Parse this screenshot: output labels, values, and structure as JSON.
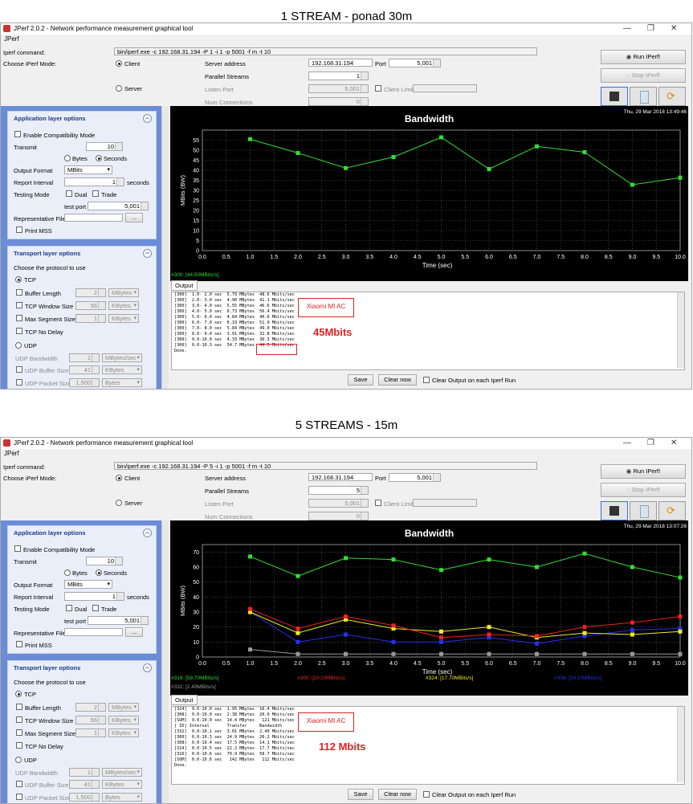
{
  "captions": {
    "top": "1 STREAM - ponad 30m",
    "bottom": "5 STREAMS - 15m"
  },
  "windows": [
    {
      "window_title": "JPerf 2.0.2 - Network performance measurement graphical tool",
      "menu": "JPerf",
      "iperf_command_label": "Iperf command:",
      "iperf_command": "bin/iperf.exe -c 192.168.31.194 -P 1 -i 1 -p 5001 -f m -t 10",
      "mode_label": "Choose iPerf Mode:",
      "client_label": "Client",
      "server_label": "Server",
      "server_address_label": "Server address",
      "server_address": "192.168.31.194",
      "port_label": "Port",
      "port": "5,001",
      "parallel_streams_label": "Parallel Streams",
      "parallel_streams": "1",
      "listen_port_label": "Listen Port",
      "listen_port": "5,001",
      "client_limit_label": "Client Limit",
      "num_connections_label": "Num Connections",
      "num_connections": "0",
      "run_label": "Run IPerf!",
      "stop_label": "Stop IPerf!",
      "app_section": "Application layer options",
      "compat_label": "Enable Compatibility Mode",
      "transmit_label": "Transmit",
      "transmit_value": "10",
      "bytes_label": "Bytes",
      "seconds_label": "Seconds",
      "output_format_label": "Output Format",
      "output_format": "MBits",
      "report_interval_label": "Report Interval",
      "report_interval": "1",
      "seconds_unit": "seconds",
      "testing_mode_label": "Testing Mode",
      "dual_label": "Dual",
      "trade_label": "Trade",
      "test_port_label": "test port",
      "test_port": "5,001",
      "rep_file_label": "Representative File",
      "browse_label": "...",
      "print_mss_label": "Print MSS",
      "transport_section": "Transport layer options",
      "protocol_label": "Choose the protocol to use",
      "tcp_label": "TCP",
      "buffer_len_label": "Buffer Length",
      "buffer_len": "2",
      "buffer_unit": "MBytes",
      "window_size_label": "TCP Window Size",
      "window_size": "56",
      "window_unit": "KBytes",
      "mss_label": "Max Segment Size",
      "mss": "1",
      "mss_unit": "KBytes",
      "nodelay_label": "TCP No Delay",
      "udp_label": "UDP",
      "udp_bw_label": "UDP Bandwidth",
      "udp_bw": "1",
      "udp_bw_unit": "MBytes/sec",
      "udp_buf_label": "UDP Buffer Size",
      "udp_buf": "41",
      "udp_buf_unit": "KBytes",
      "udp_packet_label": "UDP Packet Size",
      "udp_packet": "1,500",
      "udp_packet_unit": "Bytes",
      "chart_timestamp": "Thu, 29 Mar 2018 13:49:46",
      "legend": [
        {
          "label": "#300: [44.50MBits/s]",
          "color": "#33dd33"
        }
      ],
      "output_tab": "Output",
      "output_lines": [
        "[300]  1.0- 2.0 sec  5.79 MBytes  48.6 Mbits/sec",
        "[300]  2.0- 3.0 sec  4.90 MBytes  41.1 Mbits/sec",
        "[300]  3.0- 4.0 sec  5.55 MBytes  46.6 Mbits/sec",
        "[300]  4.0- 5.0 sec  6.73 MBytes  56.4 Mbits/sec",
        "[300]  5.0- 6.0 sec  4.84 MBytes  40.6 Mbits/sec",
        "[300]  6.0- 7.0 sec  6.19 MBytes  51.9 Mbits/sec",
        "[300]  7.0- 8.0 sec  5.84 MBytes  49.0 Mbits/sec",
        "[300]  8.0- 9.0 sec  3.91 MBytes  32.8 Mbits/sec",
        "[300]  9.0-10.0 sec  4.33 MBytes  36.3 Mbits/sec",
        "[300]  0.0-10.3 sec  54.7 MBytes  44.5 Mbits/sec",
        "Done."
      ],
      "annot_router": "Xiaomi MI AC",
      "annot_speed": "45Mbits",
      "save_label": "Save",
      "clear_label": "Clear now",
      "clear_each_label": "Clear Output on each Iperf Run"
    },
    {
      "window_title": "JPerf 2.0.2 - Network performance measurement graphical tool",
      "menu": "JPerf",
      "iperf_command_label": "Iperf command:",
      "iperf_command": "bin/iperf.exe -c 192.168.31.194 -P 5 -i 1 -p 5001 -f m -t 10",
      "mode_label": "Choose iPerf Mode:",
      "client_label": "Client",
      "server_label": "Server",
      "server_address_label": "Server address",
      "server_address": "192.168.31.194",
      "port_label": "Port",
      "port": "5,001",
      "parallel_streams_label": "Parallel Streams",
      "parallel_streams": "5",
      "listen_port_label": "Listen Port",
      "listen_port": "5,001",
      "client_limit_label": "Client Limit",
      "num_connections_label": "Num Connections",
      "num_connections": "0",
      "run_label": "Run IPerf!",
      "stop_label": "Stop IPerf!",
      "app_section": "Application layer options",
      "compat_label": "Enable Compatibility Mode",
      "transmit_label": "Transmit",
      "transmit_value": "10",
      "bytes_label": "Bytes",
      "seconds_label": "Seconds",
      "output_format_label": "Output Format",
      "output_format": "MBits",
      "report_interval_label": "Report Interval",
      "report_interval": "1",
      "seconds_unit": "seconds",
      "testing_mode_label": "Testing Mode",
      "dual_label": "Dual",
      "trade_label": "Trade",
      "test_port_label": "test port",
      "test_port": "5,001",
      "rep_file_label": "Representative File",
      "browse_label": "...",
      "print_mss_label": "Print MSS",
      "transport_section": "Transport layer options",
      "protocol_label": "Choose the protocol to use",
      "tcp_label": "TCP",
      "buffer_len_label": "Buffer Length",
      "buffer_len": "2",
      "buffer_unit": "MBytes",
      "window_size_label": "TCP Window Size",
      "window_size": "56",
      "window_unit": "KBytes",
      "mss_label": "Max Segment Size",
      "mss": "1",
      "mss_unit": "KBytes",
      "nodelay_label": "TCP No Delay",
      "udp_label": "UDP",
      "udp_bw_label": "UDP Bandwidth",
      "udp_bw": "1",
      "udp_bw_unit": "MBytes/sec",
      "udp_buf_label": "UDP Buffer Size",
      "udp_buf": "41",
      "udp_buf_unit": "KBytes",
      "udp_packet_label": "UDP Packet Size",
      "udp_packet": "1,500",
      "udp_packet_unit": "Bytes",
      "chart_timestamp": "Thu, 29 Mar 2018 13:07:26",
      "legend": [
        {
          "label": "#316: [58.70MBits/s]",
          "color": "#33dd33"
        },
        {
          "label": "#300: [20.20MBits/s]",
          "color": "#ee2222"
        },
        {
          "label": "#324: [17.70MBits/s]",
          "color": "#eeee22"
        },
        {
          "label": "#308: [14.10MBits/s]",
          "color": "#2233ee"
        },
        {
          "label": "#332: [2.49MBits/s]",
          "color": "#999999"
        }
      ],
      "output_tab": "Output",
      "output_lines": [
        "[324]  9.0-10.0 sec  1.95 MBytes  16.4 Mbits/sec",
        "[308]  9.0-10.0 sec  2.38 MBytes  20.0 Mbits/sec",
        "[SUM]  9.0-10.0 sec  14.4 MBytes   121 Mbits/sec",
        "[ ID] Interval       Transfer     Bandwidth",
        "[332]  0.0-10.1 sec  3.01 MBytes  2.49 Mbits/sec",
        "[300]  0.0-10.3 sec  24.9 MBytes  20.2 Mbits/sec",
        "[308]  0.0-10.4 sec  17.5 MBytes  14.1 Mbits/sec",
        "[324]  0.0-10.5 sec  22.2 MBytes  17.7 Mbits/sec",
        "[316]  0.0-10.6 sec  70.9 MBytes  58.7 Mbits/sec",
        "[SUM]  0.0-10.6 sec   142 MBytes   112 Mbits/sec",
        "Done."
      ],
      "annot_router": "Xiaomi MI AC",
      "annot_speed": "112 Mbits",
      "save_label": "Save",
      "clear_label": "Clear now",
      "clear_each_label": "Clear Output on each Iperf Run"
    }
  ],
  "chart_data": [
    {
      "type": "line",
      "title": "Bandwidth",
      "xlabel": "Time (sec)",
      "ylabel": "MBits (BW)",
      "xlim": [
        0,
        10
      ],
      "ylim": [
        0,
        60
      ],
      "xticks": [
        "0.0",
        "0.5",
        "1.0",
        "1.5",
        "2.0",
        "2.5",
        "3.0",
        "3.5",
        "4.0",
        "4.5",
        "5.0",
        "5.5",
        "6.0",
        "6.5",
        "7.0",
        "7.5",
        "8.0",
        "8.5",
        "9.0",
        "9.5",
        "10.0"
      ],
      "yticks": [
        0,
        5,
        10,
        15,
        20,
        25,
        30,
        35,
        40,
        45,
        50,
        55
      ],
      "x": [
        1,
        2,
        3,
        4,
        5,
        6,
        7,
        8,
        9,
        10
      ],
      "series": [
        {
          "name": "#300",
          "color": "#33dd33",
          "values": [
            55.5,
            48.6,
            41.1,
            46.6,
            56.4,
            40.6,
            51.9,
            49.0,
            32.8,
            36.3
          ]
        }
      ]
    },
    {
      "type": "line",
      "title": "Bandwidth",
      "xlabel": "Time (sec)",
      "ylabel": "MBits (BW)",
      "xlim": [
        0,
        10
      ],
      "ylim": [
        0,
        75
      ],
      "xticks": [
        "0.0",
        "0.5",
        "1.0",
        "1.5",
        "2.0",
        "2.5",
        "3.0",
        "3.5",
        "4.0",
        "4.5",
        "5.0",
        "5.5",
        "6.0",
        "6.5",
        "7.0",
        "7.5",
        "8.0",
        "8.5",
        "9.0",
        "9.5",
        "10.0"
      ],
      "yticks": [
        0,
        10,
        20,
        30,
        40,
        50,
        60,
        70
      ],
      "x": [
        1,
        2,
        3,
        4,
        5,
        6,
        7,
        8,
        9,
        10
      ],
      "series": [
        {
          "name": "#316",
          "color": "#33dd33",
          "values": [
            67,
            54,
            66,
            65,
            58,
            65,
            60,
            69,
            60,
            53
          ]
        },
        {
          "name": "#300",
          "color": "#ee2222",
          "values": [
            32,
            19,
            27,
            21,
            13,
            15,
            14,
            20,
            23,
            27
          ]
        },
        {
          "name": "#324",
          "color": "#eeee22",
          "values": [
            30,
            16,
            25,
            19,
            17,
            20,
            13,
            16,
            15,
            17
          ]
        },
        {
          "name": "#308",
          "color": "#2233ee",
          "values": [
            30,
            10,
            15,
            10,
            10,
            13,
            9,
            14,
            18,
            19
          ]
        },
        {
          "name": "#332",
          "color": "#999999",
          "values": [
            5,
            2,
            2,
            2,
            2,
            2,
            2,
            2,
            2,
            2
          ]
        }
      ]
    }
  ]
}
